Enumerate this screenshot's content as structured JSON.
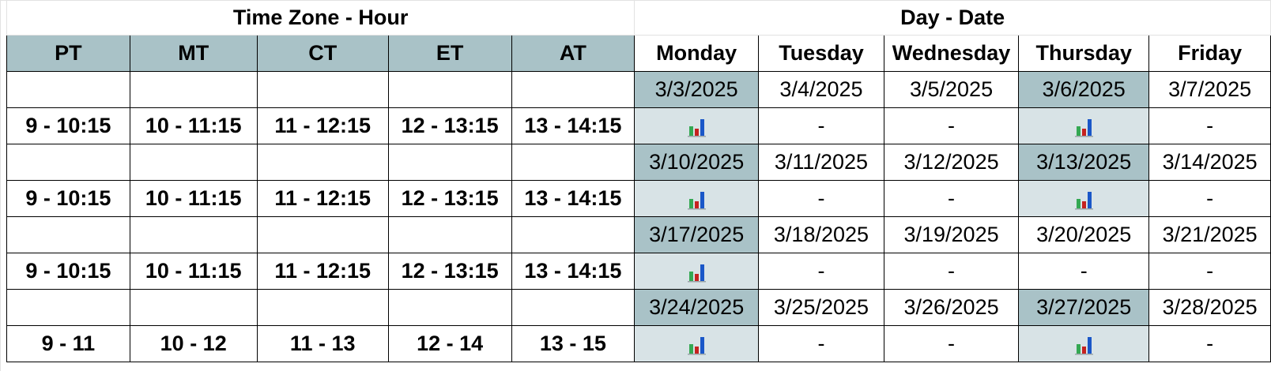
{
  "sections": {
    "time_zone": "Time Zone - Hour",
    "day_date": "Day - Date"
  },
  "zones": [
    "PT",
    "MT",
    "CT",
    "ET",
    "AT"
  ],
  "days": [
    "Monday",
    "Tuesday",
    "Wednesday",
    "Thursday",
    "Friday"
  ],
  "weeks": [
    {
      "dates": [
        "3/3/2025",
        "3/4/2025",
        "3/5/2025",
        "3/6/2025",
        "3/7/2025"
      ],
      "times": [
        "9 - 10:15",
        "10 - 11:15",
        "11 - 12:15",
        "12 - 13:15",
        "13 - 14:15"
      ],
      "cells": [
        "chart-icon",
        "-",
        "-",
        "chart-icon",
        "-"
      ]
    },
    {
      "dates": [
        "3/10/2025",
        "3/11/2025",
        "3/12/2025",
        "3/13/2025",
        "3/14/2025"
      ],
      "times": [
        "9 - 10:15",
        "10 - 11:15",
        "11 - 12:15",
        "12 - 13:15",
        "13 - 14:15"
      ],
      "cells": [
        "chart-icon",
        "-",
        "-",
        "chart-icon",
        "-"
      ]
    },
    {
      "dates": [
        "3/17/2025",
        "3/18/2025",
        "3/19/2025",
        "3/20/2025",
        "3/21/2025"
      ],
      "times": [
        "9 - 10:15",
        "10 - 11:15",
        "11 - 12:15",
        "12 - 13:15",
        "13 - 14:15"
      ],
      "cells": [
        "chart-icon",
        "-",
        "-",
        "-",
        "-"
      ]
    },
    {
      "dates": [
        "3/24/2025",
        "3/25/2025",
        "3/26/2025",
        "3/27/2025",
        "3/28/2025"
      ],
      "times": [
        "9 - 11",
        "10 - 12",
        "11 - 13",
        "12 - 14",
        "13 - 15"
      ],
      "cells": [
        "chart-icon",
        "-",
        "-",
        "chart-icon",
        "-"
      ]
    }
  ],
  "colors": {
    "header_fill": "#a9c2c7",
    "event_fill": "#d8e3e6",
    "icon_green": "#34a853",
    "icon_red": "#c5221f",
    "icon_blue": "#1a57c8"
  }
}
